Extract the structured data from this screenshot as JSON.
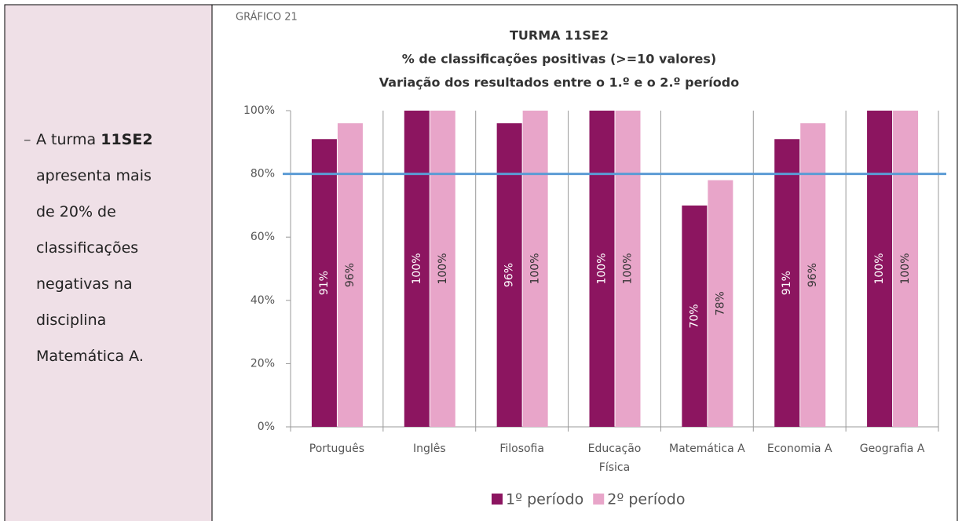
{
  "sidebar": {
    "bullet": "–",
    "text_before": "A turma",
    "bold": "11SE2",
    "text_after": "apresenta mais de 20% de classificações negativas na disciplina Matemática A."
  },
  "chart_data": {
    "type": "bar",
    "label": "GRÁFICO 21",
    "title": "TURMA 11SE2",
    "subtitle": [
      "% de classificações positivas (>=10 valores)",
      "Variação dos resultados entre o 1.º e o 2.º período"
    ],
    "categories": [
      "Português",
      "Inglês",
      "Filosofia",
      "Educação Física",
      "Matemática A",
      "Economia A",
      "Geografia A"
    ],
    "series": [
      {
        "name": "1º período",
        "color": "#8c1560",
        "values": [
          91,
          100,
          96,
          100,
          70,
          91,
          100
        ],
        "value_labels": [
          "91%",
          "100%",
          "96%",
          "100%",
          "70%",
          "91%",
          "100%"
        ]
      },
      {
        "name": "2º período",
        "color": "#e8a5c9",
        "values": [
          96,
          100,
          100,
          100,
          78,
          96,
          100
        ],
        "value_labels": [
          "96%",
          "100%",
          "100%",
          "100%",
          "78%",
          "96%",
          "100%"
        ]
      }
    ],
    "ylim": [
      0,
      100
    ],
    "yticks": [
      {
        "value": 0,
        "label": "0%"
      },
      {
        "value": 20,
        "label": "20%"
      },
      {
        "value": 40,
        "label": "40%"
      },
      {
        "value": 60,
        "label": "60%"
      },
      {
        "value": 80,
        "label": "80%"
      },
      {
        "value": 100,
        "label": "100%"
      }
    ],
    "reference_line": {
      "value": 80,
      "color": "#5b9bd5"
    },
    "legend": "bottom"
  }
}
